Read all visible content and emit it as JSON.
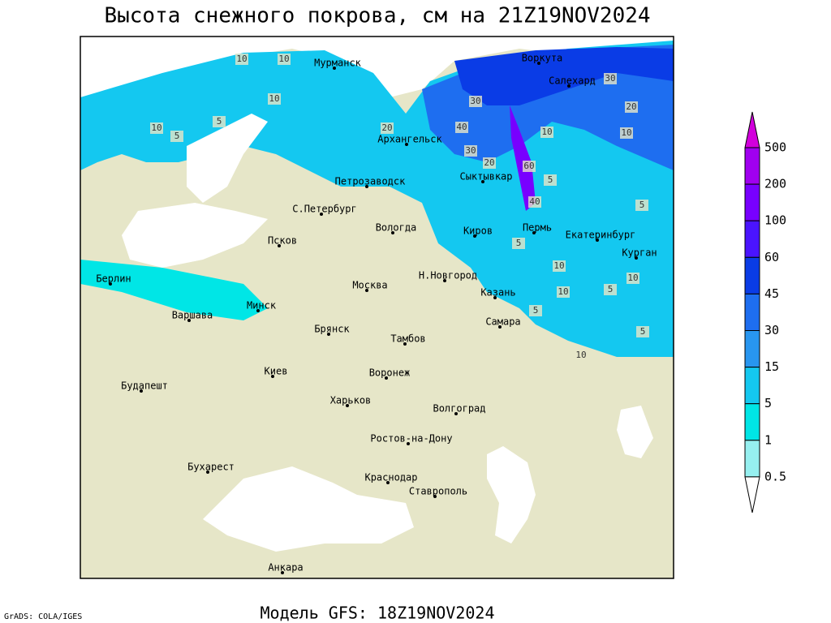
{
  "header": {
    "title": "Высота снежного покрова, см на 21Z19NOV2024"
  },
  "map": {
    "cities": [
      "Мурманск",
      "Воркута",
      "Салехард",
      "Архангельск",
      "Сыктывкар",
      "Петрозаводск",
      "С.Петербург",
      "Вологда",
      "Киров",
      "Пермь",
      "Екатеринбург",
      "Курган",
      "Псков",
      "Берлин",
      "Н.Новгород",
      "Москва",
      "Казань",
      "Минск",
      "Варшава",
      "Самара",
      "Брянск",
      "Тамбов",
      "Киев",
      "Воронеж",
      "Будапешт",
      "Харьков",
      "Волгоград",
      "Ростов-на-Дону",
      "Бухарест",
      "Краснодар",
      "Ставрополь",
      "Анкара"
    ],
    "contour_labels": [
      10,
      10,
      10,
      5,
      10,
      5,
      20,
      40,
      30,
      30,
      20,
      10,
      20,
      10,
      30,
      5,
      5,
      5,
      10,
      10,
      10,
      5,
      5,
      5,
      10,
      60,
      40
    ]
  },
  "legend": {
    "levels": [
      500,
      200,
      100,
      60,
      45,
      30,
      15,
      5,
      1,
      0.5
    ],
    "colors": [
      "#d200dc",
      "#a000f0",
      "#7800ff",
      "#4a14ff",
      "#0a3ce6",
      "#1e6ef0",
      "#2896f0",
      "#14c8f0",
      "#00e6e6",
      "#96f0f0",
      "#ffffff"
    ]
  },
  "footer": {
    "credit": "GrADS: COLA/IGES",
    "model": "Модель GFS: 18Z19NOV2024"
  }
}
